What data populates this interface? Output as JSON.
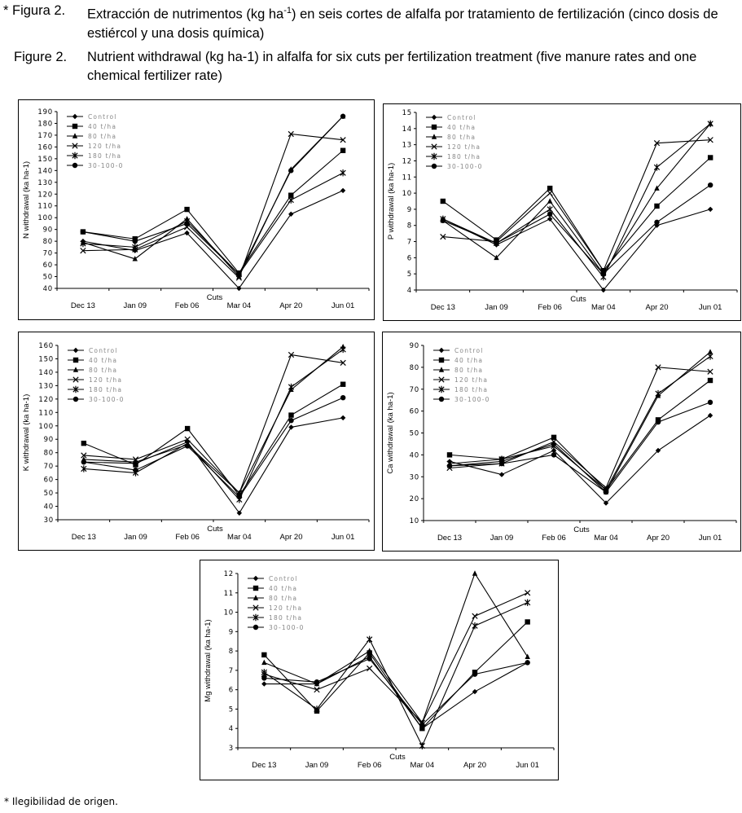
{
  "caption_es": {
    "number": "* Figura 2.",
    "text_before": "Extracción de nutrimentos (kg ha",
    "text_sup": "-1",
    "text_after": ") en seis cortes de alfalfa por tratamiento de fertilización (cinco dosis de estiércol y una dosis química)"
  },
  "caption_en": {
    "number": "Figure 2.",
    "text": "Nutrient withdrawal (kg ha-1) in alfalfa for six cuts  per fertilization treatment (five manure rates and one chemical fertilizer rate)"
  },
  "footnote": "* Ilegibilidad de origen.",
  "chart_data": [
    {
      "type": "line",
      "ylabel": "N withdrawal (ka ha-1)",
      "xlabel": "Cuts",
      "categories": [
        "Dec 13",
        "Jan 09",
        "Feb 06",
        "Mar 04",
        "Apr 20",
        "Jun 01"
      ],
      "ylim": [
        40,
        190
      ],
      "ytick_step": 10,
      "yticks": [
        "40",
        "50",
        "60",
        "70",
        "80",
        "90",
        "100",
        "110",
        "120",
        "130",
        "140",
        "150",
        "160",
        "170",
        "180",
        "190"
      ],
      "legend_position": "top-left",
      "series": [
        {
          "name": "Control",
          "marker": "diamond",
          "values": [
            80,
            72,
            87,
            40,
            103,
            123
          ]
        },
        {
          "name": "40 t/ha",
          "marker": "square",
          "values": [
            88,
            82,
            107,
            53,
            119,
            157
          ]
        },
        {
          "name": "80 t/ha",
          "marker": "triangle",
          "values": [
            79,
            65,
            99,
            50,
            141,
            186
          ]
        },
        {
          "name": "120 t/ha",
          "marker": "x",
          "values": [
            72,
            73,
            92,
            49,
            171,
            166
          ]
        },
        {
          "name": "180 t/ha",
          "marker": "star",
          "values": [
            78,
            75,
            97,
            52,
            115,
            138
          ]
        },
        {
          "name": "30-100-0",
          "marker": "circle",
          "values": [
            88,
            80,
            95,
            52,
            140,
            186
          ]
        }
      ]
    },
    {
      "type": "line",
      "ylabel": "P withdrawal (ka ha-1)",
      "xlabel": "Cuts",
      "categories": [
        "Dec 13",
        "Jan 09",
        "Feb 06",
        "Mar 04",
        "Apr 20",
        "Jun 01"
      ],
      "ylim": [
        4,
        15
      ],
      "ytick_step": 1,
      "yticks": [
        "4",
        "5",
        "6",
        "7",
        "8",
        "9",
        "10",
        "11",
        "12",
        "13",
        "14",
        "15"
      ],
      "legend_position": "top-left",
      "series": [
        {
          "name": "Control",
          "marker": "diamond",
          "values": [
            8.4,
            6.8,
            8.4,
            4.0,
            8.0,
            9.0
          ]
        },
        {
          "name": "40 t/ha",
          "marker": "square",
          "values": [
            9.5,
            7.1,
            10.3,
            5.2,
            9.2,
            12.2
          ]
        },
        {
          "name": "80 t/ha",
          "marker": "triangle",
          "values": [
            8.3,
            6.0,
            9.5,
            5.0,
            10.3,
            14.3
          ]
        },
        {
          "name": "120 t/ha",
          "marker": "x",
          "values": [
            7.3,
            7.0,
            10.0,
            5.2,
            13.1,
            13.3
          ]
        },
        {
          "name": "180 t/ha",
          "marker": "star",
          "values": [
            8.4,
            6.9,
            9.0,
            4.8,
            11.6,
            14.3
          ]
        },
        {
          "name": "30-100-0",
          "marker": "circle",
          "values": [
            8.3,
            6.9,
            8.7,
            5.0,
            8.2,
            10.5
          ]
        }
      ]
    },
    {
      "type": "line",
      "ylabel": "K withdrawal (ka ha-1)",
      "xlabel": "Cuts",
      "categories": [
        "Dec 13",
        "Jan 09",
        "Feb 06",
        "Mar 04",
        "Apr 20",
        "Jun 01"
      ],
      "ylim": [
        30,
        160
      ],
      "ytick_step": 10,
      "yticks": [
        "30",
        "40",
        "50",
        "60",
        "70",
        "80",
        "90",
        "100",
        "110",
        "120",
        "130",
        "140",
        "150",
        "160"
      ],
      "legend_position": "top-left",
      "series": [
        {
          "name": "Control",
          "marker": "diamond",
          "values": [
            73,
            72,
            88,
            35,
            99,
            106
          ]
        },
        {
          "name": "40 t/ha",
          "marker": "square",
          "values": [
            87,
            71,
            98,
            48,
            108,
            131
          ]
        },
        {
          "name": "80 t/ha",
          "marker": "triangle",
          "values": [
            75,
            73,
            86,
            50,
            127,
            159
          ]
        },
        {
          "name": "120 t/ha",
          "marker": "x",
          "values": [
            78,
            75,
            90,
            50,
            153,
            147
          ]
        },
        {
          "name": "180 t/ha",
          "marker": "star",
          "values": [
            68,
            65,
            87,
            45,
            129,
            157
          ]
        },
        {
          "name": "30-100-0",
          "marker": "circle",
          "values": [
            73,
            67,
            85,
            47,
            104,
            121
          ]
        }
      ]
    },
    {
      "type": "line",
      "ylabel": "Ca withdrawal (ka ha-1)",
      "xlabel": "Cuts",
      "categories": [
        "Dec 13",
        "Jan 09",
        "Feb 06",
        "Mar 04",
        "Apr 20",
        "Jun 01"
      ],
      "ylim": [
        10,
        90
      ],
      "ytick_step": 10,
      "yticks": [
        "10",
        "20",
        "30",
        "40",
        "50",
        "60",
        "70",
        "80",
        "90"
      ],
      "legend_position": "top-left",
      "series": [
        {
          "name": "Control",
          "marker": "diamond",
          "values": [
            37,
            31,
            42,
            18,
            42,
            58
          ]
        },
        {
          "name": "40 t/ha",
          "marker": "square",
          "values": [
            40,
            38,
            48,
            24,
            56,
            74
          ]
        },
        {
          "name": "80 t/ha",
          "marker": "triangle",
          "values": [
            35,
            37,
            45,
            23,
            67,
            87
          ]
        },
        {
          "name": "120 t/ha",
          "marker": "x",
          "values": [
            34,
            36,
            46,
            25,
            80,
            78
          ]
        },
        {
          "name": "180 t/ha",
          "marker": "star",
          "values": [
            36,
            38,
            44,
            24,
            68,
            85
          ]
        },
        {
          "name": "30-100-0",
          "marker": "circle",
          "values": [
            35,
            36,
            40,
            23,
            55,
            64
          ]
        }
      ]
    },
    {
      "type": "line",
      "ylabel": "Mg withdrawal (ka ha-1)",
      "xlabel": "Cuts",
      "categories": [
        "Dec 13",
        "Jan 09",
        "Feb 06",
        "Mar 04",
        "Apr 20",
        "Jun 01"
      ],
      "ylim": [
        3,
        12
      ],
      "ytick_step": 1,
      "yticks": [
        "3",
        "4",
        "5",
        "6",
        "7",
        "8",
        "9",
        "10",
        "11",
        "12"
      ],
      "legend_position": "top-left",
      "series": [
        {
          "name": "Control",
          "marker": "diamond",
          "values": [
            6.3,
            6.3,
            7.7,
            4.0,
            5.9,
            7.4
          ]
        },
        {
          "name": "40 t/ha",
          "marker": "square",
          "values": [
            7.8,
            4.9,
            7.9,
            4.0,
            6.9,
            9.5
          ]
        },
        {
          "name": "80 t/ha",
          "marker": "triangle",
          "values": [
            7.4,
            6.3,
            8.0,
            4.3,
            12.0,
            7.7
          ]
        },
        {
          "name": "120 t/ha",
          "marker": "x",
          "values": [
            6.8,
            6.0,
            7.1,
            4.3,
            9.8,
            11.0
          ]
        },
        {
          "name": "180 t/ha",
          "marker": "star",
          "values": [
            6.9,
            5.0,
            8.6,
            3.1,
            9.3,
            10.5
          ]
        },
        {
          "name": "30-100-0",
          "marker": "circle",
          "values": [
            6.6,
            6.4,
            7.6,
            4.2,
            6.8,
            7.4
          ]
        }
      ]
    }
  ]
}
